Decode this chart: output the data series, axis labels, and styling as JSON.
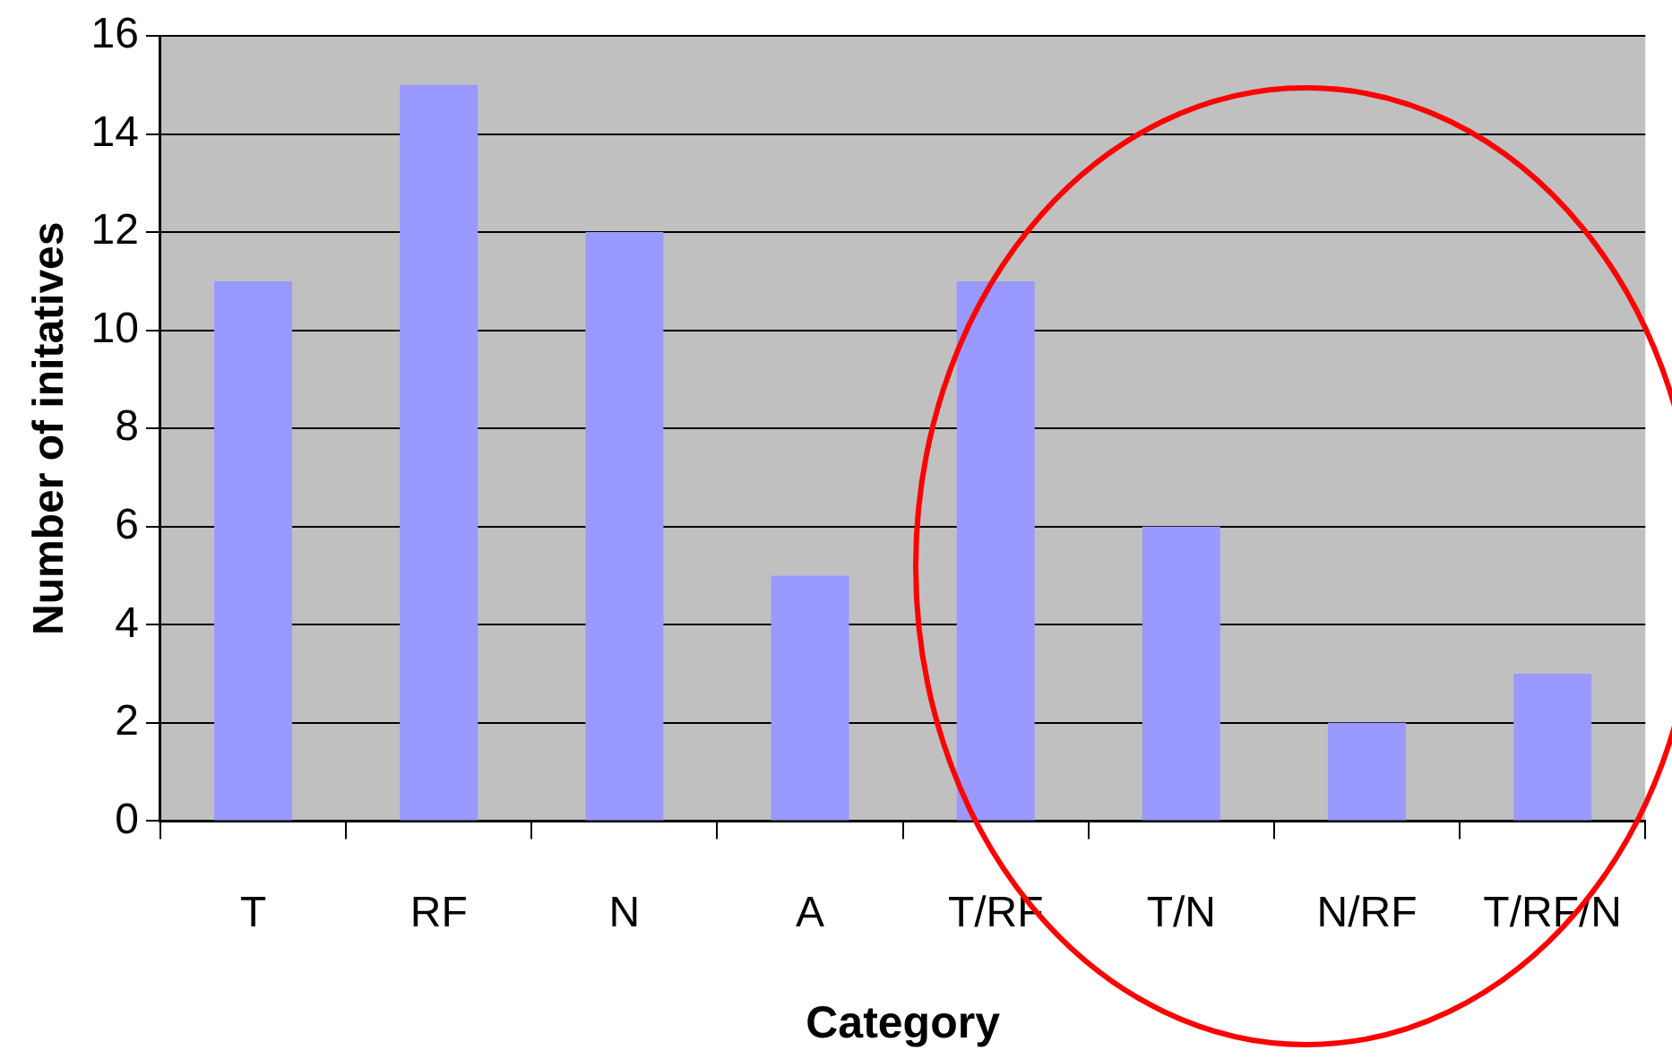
{
  "chart_data": {
    "type": "bar",
    "xlabel": "Category",
    "ylabel": "Number of initatives",
    "categories": [
      "T",
      "RF",
      "N",
      "A",
      "T/RF",
      "T/N",
      "N/RF",
      "T/RF/N"
    ],
    "values": [
      11,
      15,
      12,
      5,
      11,
      6,
      2,
      3
    ],
    "color": "#9999ff",
    "ylim": [
      0,
      16
    ],
    "yticks": [
      0,
      2,
      4,
      6,
      8,
      10,
      12,
      14,
      16
    ],
    "grid": "y",
    "legend": false
  }
}
